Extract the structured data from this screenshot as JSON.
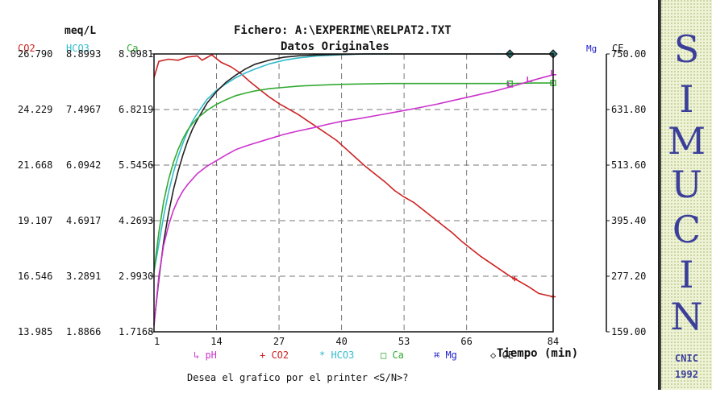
{
  "header": {
    "units_label": "meq/L",
    "file_label": "Fichero: A:\\EXPERIME\\RELPAT2.TXT",
    "subtitle": "Datos Originales"
  },
  "footer": {
    "prompt": "Desea el grafico por el printer <S/N>?"
  },
  "sidebar": {
    "letters": [
      "S",
      "I",
      "M",
      "U",
      "C",
      "I",
      "N"
    ],
    "org": "CNIC",
    "year": "1992"
  },
  "colors": {
    "pH": "#cc33cc",
    "CO2": "#cc2222",
    "HCO3": "#33bbcc",
    "Ca": "#33aa33",
    "Mg": "#2222cc",
    "CE": "#222222",
    "grid": "#777777",
    "logo": "#3b3f9a"
  },
  "chart_data": {
    "type": "line",
    "xlabel": "Tiempo (min)",
    "x_ticks": [
      "1",
      "14",
      "27",
      "40",
      "53",
      "66",
      "84"
    ],
    "xlim": [
      1,
      84
    ],
    "grid": true,
    "legend_position": "bottom",
    "axes": [
      {
        "name": "CO2",
        "side": "left",
        "ticks": [
          "26.790",
          "24.229",
          "21.668",
          "19.107",
          "16.546",
          "13.985"
        ],
        "range": [
          13.985,
          26.79
        ]
      },
      {
        "name": "HCO3",
        "side": "left",
        "ticks": [
          "8.8993",
          "7.4967",
          "6.0942",
          "4.6917",
          "3.2891",
          "1.8866"
        ],
        "range": [
          1.8866,
          8.8993
        ]
      },
      {
        "name": "Ca",
        "side": "left",
        "ticks": [
          "8.0981",
          "6.8219",
          "5.5456",
          "4.2693",
          "2.9930",
          "1.7168"
        ],
        "range": [
          1.7168,
          8.0981
        ]
      },
      {
        "name": "Mg",
        "side": "right",
        "ticks": [],
        "range": null
      },
      {
        "name": "CE",
        "side": "right",
        "ticks": [
          "750.00",
          "631.80",
          "513.60",
          "395.40",
          "277.20",
          "159.00"
        ],
        "range": [
          159.0,
          750.0
        ]
      }
    ],
    "legend": [
      {
        "name": "pH",
        "marker": "↳",
        "color_key": "pH"
      },
      {
        "name": "CO2",
        "marker": "+",
        "color_key": "CO2"
      },
      {
        "name": "HCO3",
        "marker": "*",
        "color_key": "HCO3"
      },
      {
        "name": "Ca",
        "marker": "□",
        "color_key": "Ca"
      },
      {
        "name": "Mg",
        "marker": "⌘",
        "color_key": "Mg"
      },
      {
        "name": "CE",
        "marker": "◇",
        "color_key": "CE"
      }
    ],
    "series": [
      {
        "name": "CO2",
        "axis": "CO2",
        "x": [
          1,
          2,
          4,
          6,
          8,
          10,
          11,
          13,
          15,
          17,
          19,
          21,
          23,
          25,
          27,
          29,
          31,
          33,
          35,
          37,
          39,
          41,
          43,
          45,
          47,
          49,
          51,
          53,
          55,
          57,
          59,
          61,
          63,
          65,
          67,
          69,
          71,
          73,
          75,
          77,
          79,
          81,
          84
        ],
        "values": [
          25.7,
          26.45,
          26.55,
          26.5,
          26.65,
          26.7,
          26.5,
          26.75,
          26.4,
          26.2,
          25.9,
          25.5,
          25.15,
          24.8,
          24.5,
          24.25,
          24.0,
          23.7,
          23.4,
          23.1,
          22.8,
          22.4,
          22.0,
          21.6,
          21.25,
          20.9,
          20.5,
          20.2,
          19.95,
          19.6,
          19.25,
          18.9,
          18.55,
          18.15,
          17.8,
          17.45,
          17.15,
          16.85,
          16.55,
          16.3,
          16.05,
          15.75,
          15.6
        ]
      },
      {
        "name": "HCO3",
        "axis": "HCO3",
        "x": [
          1,
          2,
          3,
          4,
          5,
          6,
          7,
          8,
          9,
          10,
          12,
          14,
          16,
          18,
          20,
          22,
          25,
          28,
          31,
          35,
          40,
          45,
          50
        ],
        "values": [
          3.4,
          4.1,
          4.8,
          5.4,
          5.9,
          6.3,
          6.65,
          6.95,
          7.2,
          7.4,
          7.75,
          7.98,
          8.15,
          8.3,
          8.42,
          8.52,
          8.65,
          8.74,
          8.8,
          8.85,
          8.88,
          8.9,
          8.9
        ]
      },
      {
        "name": "CE",
        "axis": "CE",
        "x": [
          1,
          2,
          3,
          4,
          5,
          6,
          7,
          8,
          9,
          10,
          12,
          14,
          16,
          18,
          20,
          22,
          25,
          28,
          31,
          35,
          40,
          45,
          50,
          55,
          60,
          65,
          70,
          75,
          80,
          84
        ],
        "values": [
          175,
          270,
          350,
          410,
          460,
          500,
          535,
          565,
          590,
          610,
          645,
          670,
          690,
          705,
          718,
          728,
          737,
          743,
          746,
          748,
          749,
          750,
          750,
          750,
          750,
          750,
          750,
          750,
          750,
          750
        ],
        "markers_x": [
          75,
          84
        ]
      },
      {
        "name": "Ca",
        "axis": "Ca",
        "x": [
          1,
          2,
          3,
          4,
          5,
          6,
          7,
          8,
          9,
          10,
          12,
          14,
          16,
          18,
          20,
          22,
          25,
          28,
          31,
          35,
          40,
          45,
          50,
          55,
          60,
          65,
          70,
          75,
          80,
          84
        ],
        "values": [
          3.1,
          4.0,
          4.7,
          5.2,
          5.6,
          5.9,
          6.15,
          6.35,
          6.5,
          6.62,
          6.8,
          6.94,
          7.05,
          7.14,
          7.2,
          7.25,
          7.3,
          7.33,
          7.36,
          7.38,
          7.4,
          7.41,
          7.42,
          7.42,
          7.42,
          7.42,
          7.42,
          7.42,
          7.43,
          7.43
        ],
        "markers_x": [
          75,
          84
        ]
      },
      {
        "name": "pH",
        "axis": "Ca",
        "x": [
          1,
          2,
          3,
          4,
          5,
          6,
          7,
          8,
          10,
          12,
          14,
          16,
          18,
          20,
          22,
          25,
          28,
          31,
          34,
          37,
          40,
          44,
          48,
          52,
          56,
          60,
          64,
          68,
          72,
          76,
          80,
          84
        ],
        "values": [
          1.85,
          3.0,
          3.7,
          4.15,
          4.5,
          4.75,
          4.95,
          5.1,
          5.35,
          5.52,
          5.65,
          5.78,
          5.9,
          5.98,
          6.05,
          6.15,
          6.25,
          6.33,
          6.4,
          6.48,
          6.55,
          6.62,
          6.7,
          6.78,
          6.86,
          6.95,
          7.05,
          7.15,
          7.25,
          7.37,
          7.5,
          7.62
        ],
        "markers_x": [
          75,
          79,
          84
        ]
      }
    ]
  }
}
